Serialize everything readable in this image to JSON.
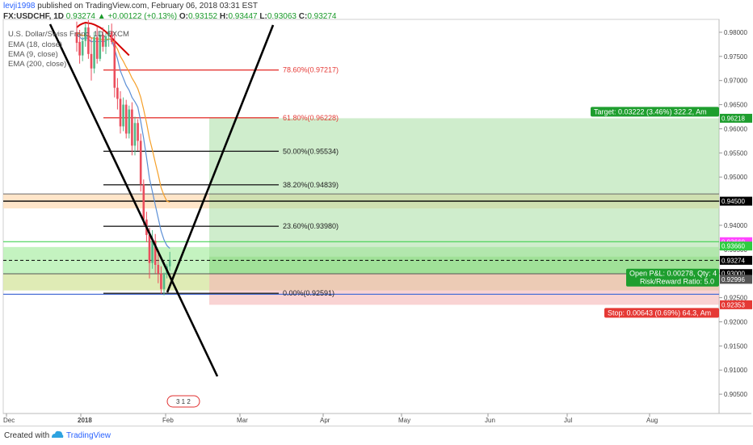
{
  "header": {
    "user": "levji1998",
    "published": "published on TradingView.com, February 06, 2018 03:31 EST",
    "symbol": "FX:USDCHF, 1D",
    "price": "0.93274",
    "change": "+0.00122 (+0.13%)",
    "ohlc": {
      "o": "0.93152",
      "h": "0.93447",
      "l": "0.93063",
      "c": "0.93274"
    }
  },
  "legend": {
    "title": "U.S. Dollar/Swiss Franc, 1D, FXCM",
    "items": [
      "EMA (18, close)",
      "EMA (9, close)",
      "EMA (200, close)"
    ]
  },
  "footer": {
    "created": "Created with",
    "brand": "TradingView"
  },
  "chart_data": {
    "type": "candlestick",
    "title": "U.S. Dollar/Swiss Franc, 1D, FXCM",
    "xlabel": "",
    "ylabel": "",
    "ylim": [
      0.901,
      0.982
    ],
    "y_ticks": [
      0.98,
      0.975,
      0.97,
      0.965,
      0.96,
      0.955,
      0.95,
      0.945,
      0.94,
      0.935,
      0.93,
      0.925,
      0.92,
      0.915,
      0.91,
      0.905
    ],
    "y_tick_labels": [
      "0.98000",
      "0.97500",
      "0.97000",
      "0.96500",
      "0.96000",
      "0.95500",
      "0.95000",
      "0.94500",
      "0.94000",
      "0.93500",
      "0.93000",
      "0.92500",
      "0.92000",
      "0.91500",
      "0.91000",
      "0.90500"
    ],
    "x_ticks": [
      "Dec",
      "2018",
      "Feb",
      "Mar",
      "Apr",
      "May",
      "Jun",
      "Jul",
      "Aug"
    ],
    "candles": [
      {
        "o": 0.98,
        "h": 0.9822,
        "l": 0.976,
        "c": 0.9778
      },
      {
        "o": 0.978,
        "h": 0.9805,
        "l": 0.9735,
        "c": 0.9752
      },
      {
        "o": 0.9752,
        "h": 0.979,
        "l": 0.974,
        "c": 0.9782
      },
      {
        "o": 0.9782,
        "h": 0.9818,
        "l": 0.977,
        "c": 0.981
      },
      {
        "o": 0.981,
        "h": 0.9825,
        "l": 0.9745,
        "c": 0.9755
      },
      {
        "o": 0.9755,
        "h": 0.979,
        "l": 0.97,
        "c": 0.9725
      },
      {
        "o": 0.9725,
        "h": 0.98,
        "l": 0.9715,
        "c": 0.979
      },
      {
        "o": 0.979,
        "h": 0.9812,
        "l": 0.9735,
        "c": 0.9745
      },
      {
        "o": 0.9745,
        "h": 0.9802,
        "l": 0.974,
        "c": 0.9795
      },
      {
        "o": 0.9795,
        "h": 0.981,
        "l": 0.976,
        "c": 0.977
      },
      {
        "o": 0.977,
        "h": 0.9798,
        "l": 0.9755,
        "c": 0.9792
      },
      {
        "o": 0.9792,
        "h": 0.9815,
        "l": 0.977,
        "c": 0.9802
      },
      {
        "o": 0.9802,
        "h": 0.9818,
        "l": 0.9775,
        "c": 0.978
      },
      {
        "o": 0.978,
        "h": 0.98,
        "l": 0.9665,
        "c": 0.9685
      },
      {
        "o": 0.9685,
        "h": 0.9705,
        "l": 0.964,
        "c": 0.9662
      },
      {
        "o": 0.9662,
        "h": 0.9678,
        "l": 0.959,
        "c": 0.9605
      },
      {
        "o": 0.9605,
        "h": 0.9665,
        "l": 0.9595,
        "c": 0.965
      },
      {
        "o": 0.965,
        "h": 0.966,
        "l": 0.958,
        "c": 0.959
      },
      {
        "o": 0.959,
        "h": 0.9648,
        "l": 0.958,
        "c": 0.964
      },
      {
        "o": 0.964,
        "h": 0.9655,
        "l": 0.9545,
        "c": 0.9565
      },
      {
        "o": 0.9565,
        "h": 0.9625,
        "l": 0.9545,
        "c": 0.9612
      },
      {
        "o": 0.9612,
        "h": 0.962,
        "l": 0.9555,
        "c": 0.9575
      },
      {
        "o": 0.9575,
        "h": 0.959,
        "l": 0.947,
        "c": 0.9485
      },
      {
        "o": 0.9485,
        "h": 0.9495,
        "l": 0.94,
        "c": 0.9412
      },
      {
        "o": 0.9412,
        "h": 0.9428,
        "l": 0.9365,
        "c": 0.938
      },
      {
        "o": 0.938,
        "h": 0.9395,
        "l": 0.929,
        "c": 0.9322
      },
      {
        "o": 0.9322,
        "h": 0.939,
        "l": 0.931,
        "c": 0.9368
      },
      {
        "o": 0.9368,
        "h": 0.9382,
        "l": 0.93,
        "c": 0.9318
      },
      {
        "o": 0.9318,
        "h": 0.934,
        "l": 0.928,
        "c": 0.93
      },
      {
        "o": 0.93,
        "h": 0.9315,
        "l": 0.9258,
        "c": 0.9268
      },
      {
        "o": 0.9268,
        "h": 0.9302,
        "l": 0.9255,
        "c": 0.9298
      },
      {
        "o": 0.9298,
        "h": 0.932,
        "l": 0.929,
        "c": 0.9315
      },
      {
        "o": 0.9315,
        "h": 0.9345,
        "l": 0.9306,
        "c": 0.9327
      }
    ],
    "series": [
      {
        "name": "EMA (9, close)",
        "color": "#5b8fd6",
        "values": [
          0.9795,
          0.979,
          0.9785,
          0.979,
          0.9786,
          0.978,
          0.9782,
          0.978,
          0.9782,
          0.978,
          0.9782,
          0.9786,
          0.9785,
          0.9765,
          0.9745,
          0.972,
          0.9705,
          0.969,
          0.968,
          0.9665,
          0.9656,
          0.9645,
          0.9615,
          0.958,
          0.954,
          0.9497,
          0.947,
          0.9442,
          0.9415,
          0.9388,
          0.937,
          0.9358,
          0.9352
        ]
      },
      {
        "name": "EMA (18, close)",
        "color": "#f5a02a",
        "values": [
          0.98,
          0.9796,
          0.9793,
          0.9794,
          0.9792,
          0.9788,
          0.9788,
          0.9786,
          0.9786,
          0.9784,
          0.9785,
          0.9786,
          0.9786,
          0.9776,
          0.9765,
          0.975,
          0.974,
          0.9728,
          0.9718,
          0.9705,
          0.9695,
          0.9683,
          0.9665,
          0.964,
          0.9612,
          0.958,
          0.9556,
          0.953,
          0.9505,
          0.9478,
          0.9462,
          0.945,
          0.9448
        ]
      },
      {
        "name": "EMA (200, close)",
        "color": "#d40000",
        "values": [
          0.981,
          0.9815,
          0.9818,
          0.982,
          0.9819,
          0.9818,
          0.9816,
          0.9813,
          0.981,
          0.9806,
          0.9801,
          0.9795,
          0.9789,
          0.9782,
          0.9776,
          0.977,
          0.9764,
          0.9758,
          0.9752
        ]
      }
    ],
    "fibonacci": [
      {
        "label": "78.60%(0.97217)",
        "value": 0.97217,
        "color": "#e53935"
      },
      {
        "label": "61.80%(0.96228)",
        "value": 0.96228,
        "color": "#e53935"
      },
      {
        "label": "50.00%(0.95534)",
        "value": 0.95534,
        "color": "#222222"
      },
      {
        "label": "38.20%(0.94839)",
        "value": 0.94839,
        "color": "#222222"
      },
      {
        "label": "23.60%(0.93980)",
        "value": 0.9398,
        "color": "#222222"
      },
      {
        "label": "0.00%(0.92591)",
        "value": 0.92591,
        "color": "#222222"
      }
    ],
    "position": {
      "entry": 0.93,
      "target": 0.96218,
      "stop": 0.92353,
      "target_label": "Target: 0.03222 (3.46%) 322.2, Am",
      "stop_label": "Stop: 0.00643 (0.69%) 64.3, Am",
      "pnl_label": "Open P&L: 0.00278, Qty: 4",
      "rr_label": "Risk/Reward Ratio: 5.0"
    },
    "levels": [
      {
        "value": 0.945,
        "label": "0.94500",
        "color": "#000000"
      },
      {
        "value": 0.9366,
        "label": "0.93660",
        "color": "#2ecc40"
      },
      {
        "value": 0.93274,
        "label": "0.93274",
        "color": "#000000"
      },
      {
        "value": 0.92996,
        "label": "0.92996",
        "color": "#555555"
      }
    ],
    "price_tags": [
      {
        "label": "0.96218",
        "value": 0.96218,
        "color": "#1e9e2e"
      },
      {
        "label": "0.94500",
        "value": 0.945,
        "color": "#000000"
      },
      {
        "label": "0.93660",
        "value": 0.9366,
        "color": "#ff44ff"
      },
      {
        "label": "0.93660",
        "value": 0.9357,
        "color": "#2ecc40"
      },
      {
        "label": "0.93274",
        "value": 0.93274,
        "color": "#000000"
      },
      {
        "label": "0.93000",
        "value": 0.93,
        "color": "#000000"
      },
      {
        "label": "0.92996",
        "value": 0.9288,
        "color": "#555555"
      },
      {
        "label": "0.92353",
        "value": 0.92353,
        "color": "#e53935"
      }
    ],
    "event_badge": "3 1 2"
  }
}
